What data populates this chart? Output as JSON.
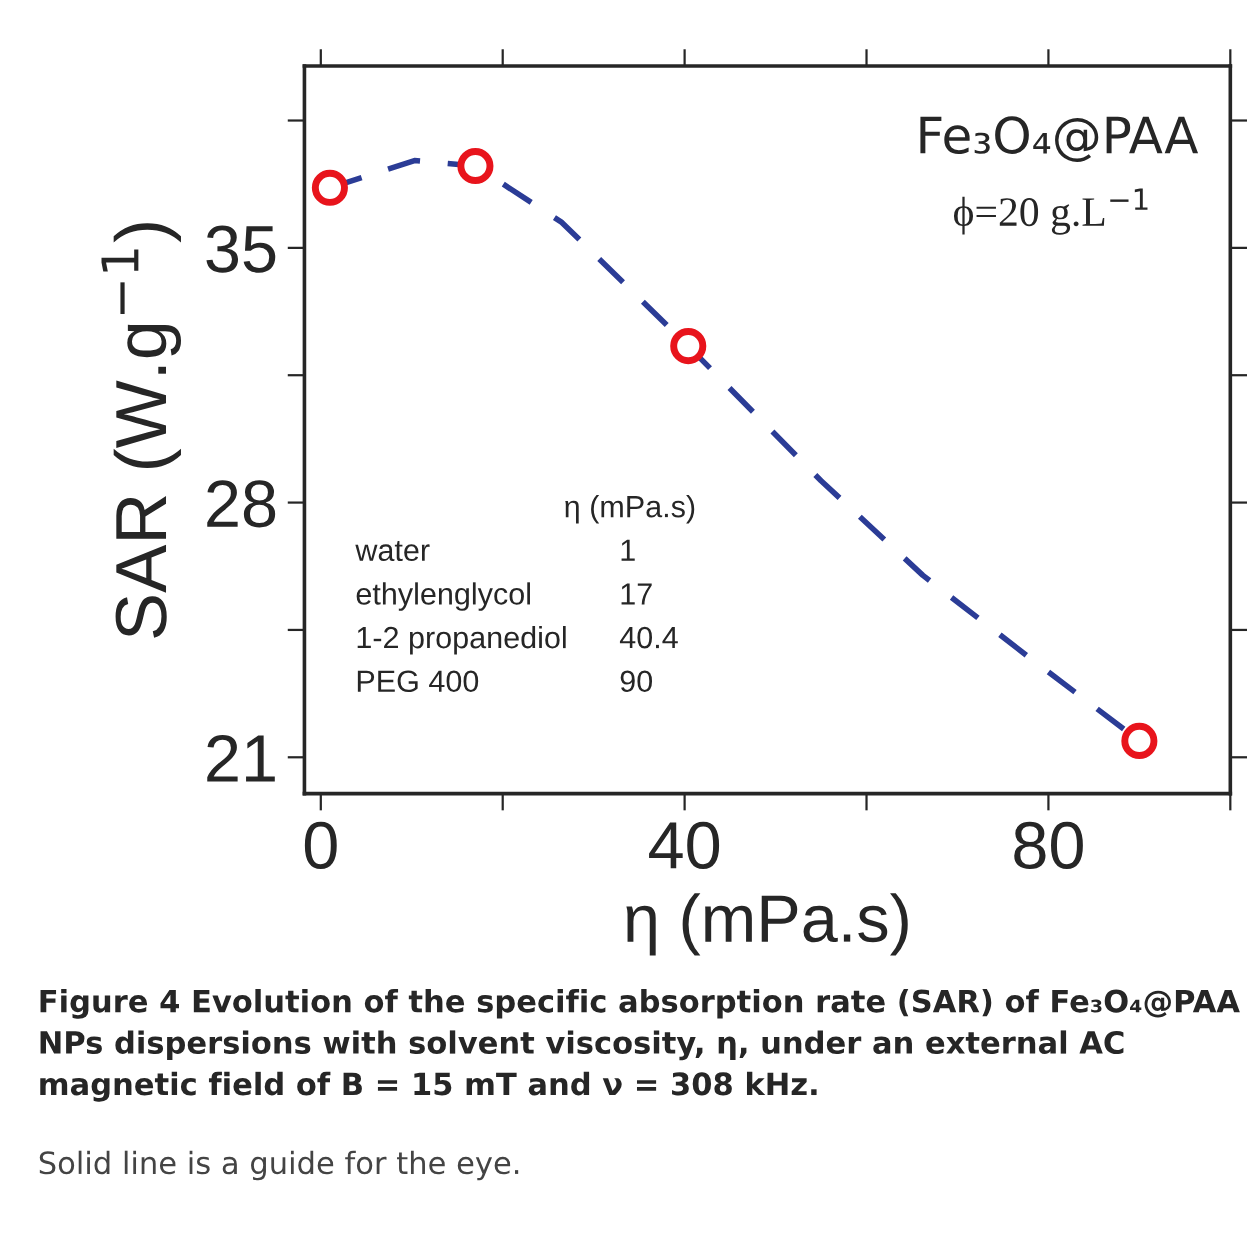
{
  "chart_data": {
    "type": "scatter",
    "xlabel": "η (mPa.s)",
    "ylabel": "SAR (W.g$^{−1}$)",
    "xlim": [
      -1.8,
      100
    ],
    "ylim": [
      20,
      40
    ],
    "xticks": [
      0,
      {
        "value": 20,
        "label": null
      },
      40,
      {
        "value": 60,
        "label": null
      },
      80,
      {
        "value": 100,
        "label": null
      }
    ],
    "yticks": [
      21,
      {
        "value": 24.5,
        "label": null
      },
      28,
      {
        "value": 31.5,
        "label": null
      },
      35,
      {
        "value": 38.5,
        "label": null
      }
    ],
    "grid": false,
    "legend": false,
    "series": [
      {
        "type": "line",
        "line_style": "dashed",
        "marker": "none",
        "color": "#2b3c96",
        "x": [
          1,
          10.3,
          17,
          26.5,
          40.4,
          55,
          66.2,
          77.6,
          90
        ],
        "values": [
          36.65,
          37.4,
          37.25,
          35.7,
          32.3,
          28.6,
          26.0,
          23.8,
          21.45
        ]
      },
      {
        "marker": "circle",
        "color": "#e8141c",
        "x": [
          1,
          17,
          40.4,
          90
        ],
        "values": [
          36.65,
          37.25,
          32.3,
          21.45
        ]
      }
    ],
    "annotations": [
      "Fe₃O₄@PAA",
      "ϕ=20 g.L$^{−1}$",
      "η (mPa.s)",
      "water",
      "1",
      "ethylenglycol",
      "17",
      "1-2 propanediol",
      "40.4",
      "PEG 400",
      "90",
      "Figure 4 Evolution of the specific absorption rate (SAR) of Fe₃O₄@PAA NPs dispersions with solvent viscosity, η, under an external AC magnetic field of B = 15 mT and ν = 308 kHz.",
      "Solid line is a guide for the eye."
    ]
  }
}
